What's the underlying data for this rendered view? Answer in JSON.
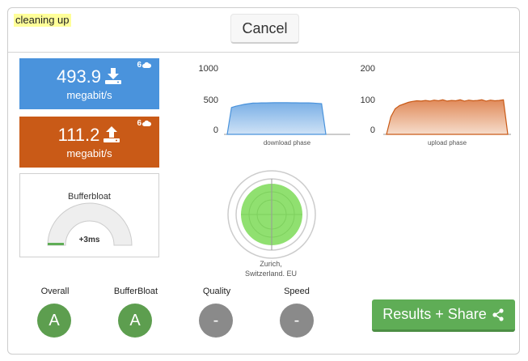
{
  "status": "cleaning up",
  "cancel_label": "Cancel",
  "download": {
    "value": "493.9",
    "unit": "megabit/s",
    "streams": "6",
    "color": "#4a93dc"
  },
  "upload": {
    "value": "111.2",
    "unit": "megabit/s",
    "streams": "6",
    "color": "#c95a17"
  },
  "bufferbloat": {
    "title": "Bufferbloat",
    "value": "+3ms"
  },
  "download_chart": {
    "ticks": [
      "1000",
      "500",
      "0"
    ],
    "label": "download phase",
    "ylim": [
      0,
      1000
    ]
  },
  "upload_chart": {
    "ticks": [
      "200",
      "100",
      "0"
    ],
    "label": "upload phase",
    "ylim": [
      0,
      200
    ]
  },
  "location": {
    "line1": "Zurich,",
    "line2": "Switzerland. EU"
  },
  "grades": [
    {
      "label": "Overall",
      "grade": "A"
    },
    {
      "label": "BufferBloat",
      "grade": "A"
    },
    {
      "label": "Quality",
      "grade": "-"
    },
    {
      "label": "Speed",
      "grade": "-"
    }
  ],
  "share_label": "Results + Share",
  "chart_data": [
    {
      "type": "area",
      "xlabel": "download phase",
      "ylim": [
        0,
        1000
      ],
      "series": [
        {
          "values": [
            0,
            420,
            440,
            455,
            470,
            480,
            488,
            490,
            492,
            493,
            494,
            495,
            495,
            495,
            495,
            494,
            494,
            493,
            493,
            492,
            490,
            485,
            480,
            0
          ]
        }
      ]
    },
    {
      "type": "area",
      "xlabel": "upload phase",
      "ylim": [
        0,
        200
      ],
      "series": [
        {
          "values": [
            0,
            55,
            80,
            90,
            95,
            100,
            103,
            105,
            104,
            106,
            104,
            107,
            105,
            108,
            104,
            106,
            105,
            108,
            104,
            107,
            105,
            106,
            108,
            104,
            107,
            105,
            106,
            108,
            0
          ]
        }
      ]
    }
  ]
}
